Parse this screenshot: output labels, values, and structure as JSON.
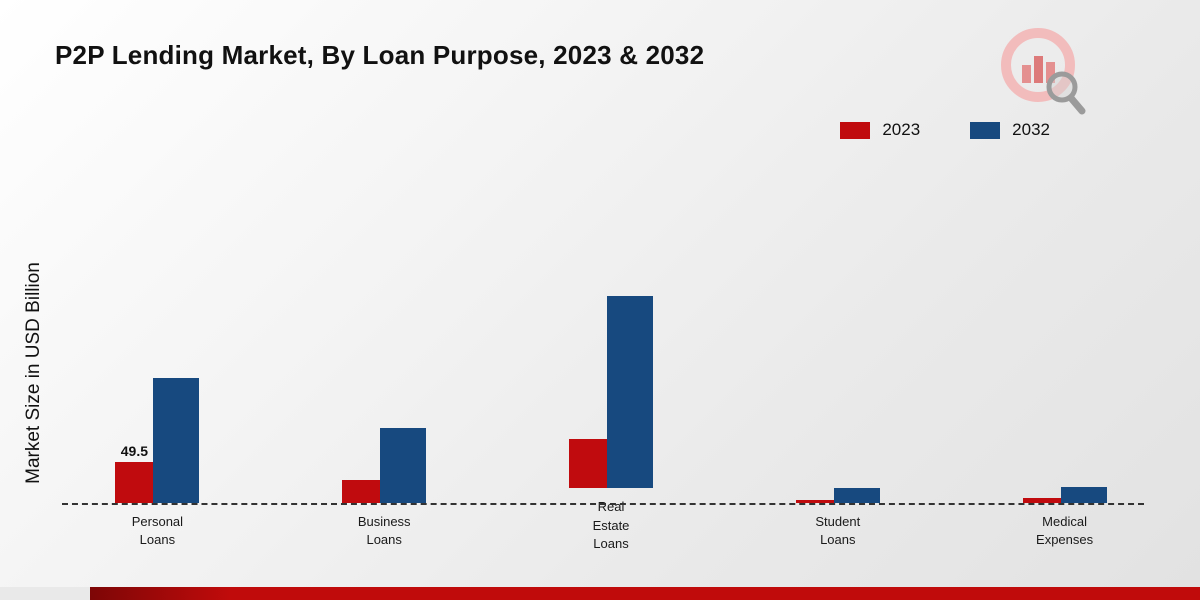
{
  "title": "P2P Lending Market, By Loan Purpose, 2023 & 2032",
  "ylabel": "Market Size in USD Billion",
  "legend": [
    {
      "label": "2023",
      "color": "#c00b0e"
    },
    {
      "label": "2032",
      "color": "#17497f"
    }
  ],
  "chart_data": {
    "type": "bar",
    "title": "P2P Lending Market, By Loan Purpose, 2023 & 2032",
    "xlabel": "",
    "ylabel": "Market Size in USD Billion",
    "categories": [
      "Personal\nLoans",
      "Business\nLoans",
      "Real\nEstate\nLoans",
      "Student\nLoans",
      "Medical\nExpenses"
    ],
    "series": [
      {
        "name": "2023",
        "color": "#c00b0e",
        "values": [
          49.5,
          28,
          60,
          4,
          6
        ]
      },
      {
        "name": "2032",
        "color": "#17497f",
        "values": [
          152,
          92,
          235,
          18,
          20
        ]
      }
    ],
    "ylim": [
      0,
      250
    ],
    "grid": false,
    "legend_position": "top-right",
    "annotations": [
      {
        "category": 0,
        "series": 0,
        "text": "49.5"
      }
    ]
  }
}
